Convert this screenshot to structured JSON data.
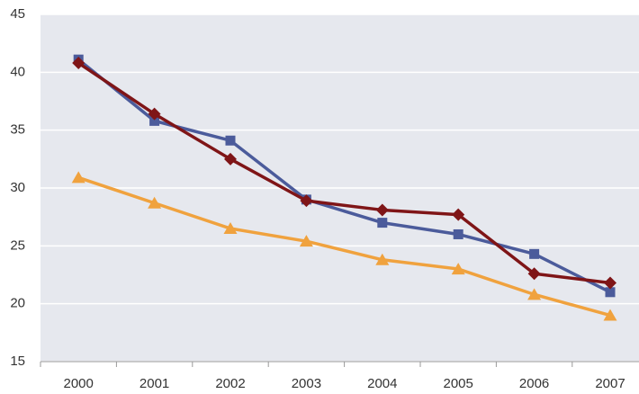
{
  "chart_data": {
    "type": "line",
    "categories": [
      "2000",
      "2001",
      "2002",
      "2003",
      "2004",
      "2005",
      "2006",
      "2007"
    ],
    "series": [
      {
        "color": "#4b5b9b",
        "marker": "square",
        "values": [
          41.1,
          35.8,
          34.1,
          29.0,
          27.0,
          26.0,
          24.3,
          21.0
        ]
      },
      {
        "color": "#7f1517",
        "marker": "diamond",
        "values": [
          40.8,
          36.4,
          32.5,
          28.9,
          28.1,
          27.7,
          22.6,
          21.8
        ]
      },
      {
        "color": "#f0a23e",
        "marker": "triangle",
        "values": [
          30.9,
          28.7,
          26.5,
          25.4,
          23.8,
          23.0,
          20.8,
          19.0
        ]
      }
    ],
    "ylim": [
      15,
      45
    ],
    "yticks": [
      15,
      20,
      25,
      30,
      35,
      40,
      45
    ],
    "grid": true,
    "background": "#e6e8ee"
  }
}
